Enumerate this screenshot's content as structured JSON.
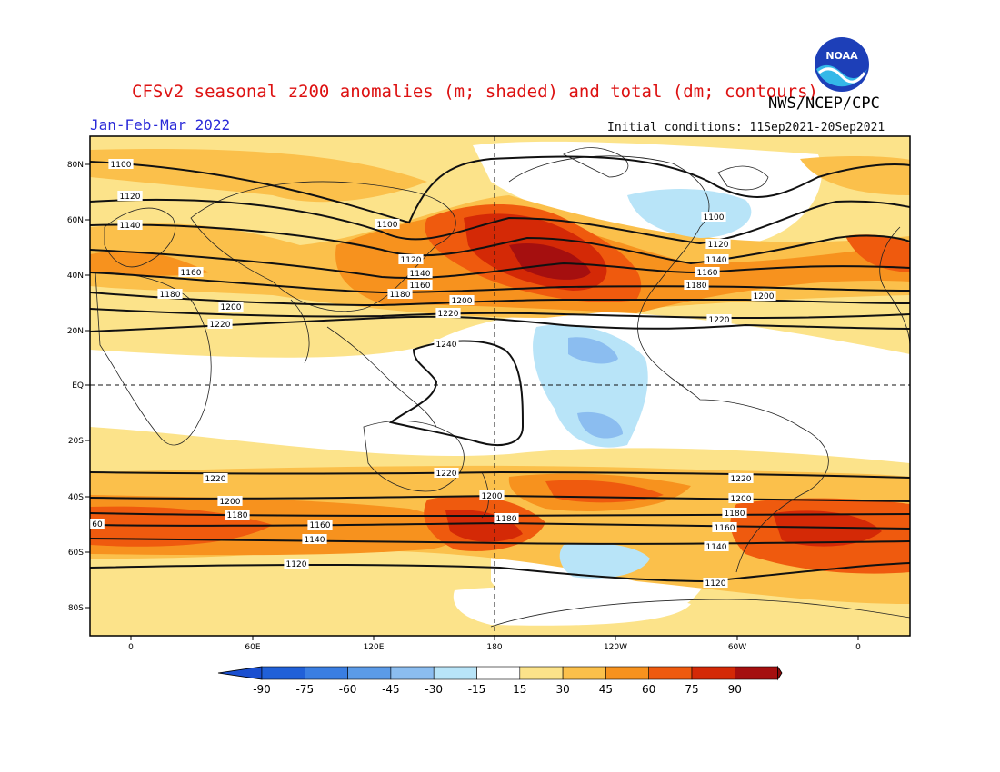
{
  "header": {
    "title": "CFSv2 seasonal z200 anomalies (m; shaded) and total (dm; contours)",
    "source": "NWS/NCEP/CPC",
    "period": "Jan-Feb-Mar 2022",
    "initial_conditions": "Initial conditions: 11Sep2021-20Sep2021",
    "logo_text": "NOAA"
  },
  "axes": {
    "lat_labels": [
      "80N",
      "60N",
      "40N",
      "20N",
      "EQ",
      "20S",
      "40S",
      "60S",
      "80S"
    ],
    "lon_labels": [
      "0",
      "60E",
      "120E",
      "180",
      "120W",
      "60W",
      "0"
    ]
  },
  "contours": {
    "labels": [
      "1100",
      "1100",
      "1100",
      "1120",
      "1120",
      "1120",
      "1120",
      "1140",
      "1140",
      "1140",
      "1160",
      "1160",
      "1160",
      "1180",
      "1180",
      "1180",
      "1200",
      "1200",
      "1200",
      "1220",
      "1220",
      "1220",
      "1240",
      "1220",
      "1220",
      "1220",
      "1200",
      "1200",
      "1200",
      "1180",
      "1180",
      "1180",
      "60",
      "1160",
      "1160",
      "1140",
      "1140",
      "1120",
      "1120"
    ]
  },
  "colorbar": {
    "ticks": [
      "-90",
      "-75",
      "-60",
      "-45",
      "-30",
      "-15",
      "15",
      "30",
      "45",
      "60",
      "75",
      "90"
    ],
    "colors": [
      "#2060d8",
      "#3a7ee2",
      "#5b9be8",
      "#8bbdf0",
      "#b8e4f8",
      "#ffffff",
      "#fce38a",
      "#fbc04b",
      "#f7921e",
      "#ef5a0e",
      "#d42906",
      "#a50f0f"
    ],
    "low_color": "#1a4fd0",
    "high_color": "#8b0a0a"
  }
}
